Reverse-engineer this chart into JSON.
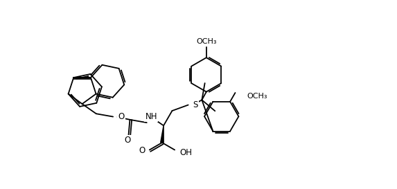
{
  "background": "#ffffff",
  "line_color": "#000000",
  "lw": 1.3,
  "figsize": [
    5.73,
    2.73
  ],
  "dpi": 100,
  "xlim": [
    -1.0,
    10.5
  ],
  "ylim": [
    -0.5,
    5.0
  ]
}
